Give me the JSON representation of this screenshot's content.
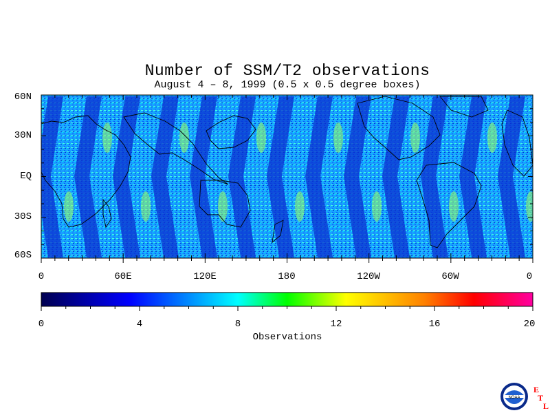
{
  "title": "Number of SSM/T2 observations",
  "subtitle": "August 4 – 8, 1999 (0.5 x 0.5 degree boxes)",
  "map": {
    "lat_labels": [
      "60N",
      "30N",
      "EQ",
      "30S",
      "60S"
    ],
    "lon_labels": [
      "0",
      "60E",
      "120E",
      "180",
      "120W",
      "60W",
      "0"
    ]
  },
  "colorbar": {
    "title": "Observations",
    "tick_labels": [
      "0",
      "4",
      "8",
      "12",
      "16",
      "20"
    ],
    "range": [
      0,
      20
    ],
    "colors": [
      "#000050",
      "#0000ff",
      "#00ffff",
      "#00ff00",
      "#ffff00",
      "#ff8000",
      "#ff0000",
      "#ff00a0"
    ]
  },
  "logo": {
    "noaa_text": "NOAA",
    "etl_letters": [
      "E",
      "T",
      "L"
    ],
    "etl_color": "#ff0000"
  }
}
